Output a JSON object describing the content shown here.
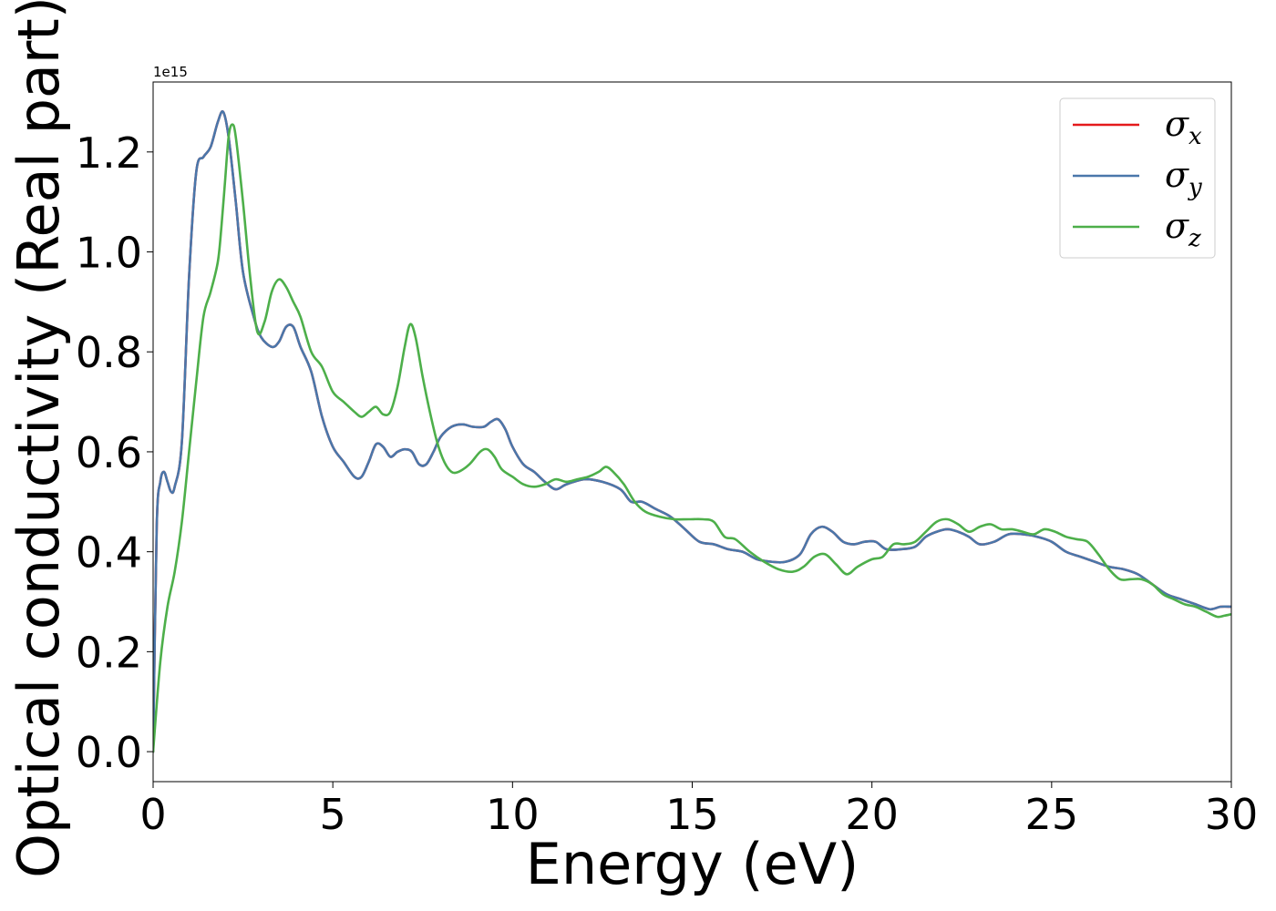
{
  "chart_data": {
    "type": "line",
    "title": "",
    "xlabel": "Energy (eV)",
    "ylabel": "Optical conductivity (Real part)",
    "y_offset_label": "1e15",
    "xlim": [
      0,
      30
    ],
    "ylim": [
      -0.06,
      1.34
    ],
    "xticks": [
      0,
      5,
      10,
      15,
      20,
      25,
      30
    ],
    "xtick_labels": [
      "0",
      "5",
      "10",
      "15",
      "20",
      "25",
      "30"
    ],
    "yticks": [
      0.0,
      0.2,
      0.4,
      0.6,
      0.8,
      1.0,
      1.2
    ],
    "ytick_labels": [
      "0.0",
      "0.2",
      "0.4",
      "0.6",
      "0.8",
      "1.0",
      "1.2"
    ],
    "grid": false,
    "legend_position": "top-right",
    "series": [
      {
        "name": "σx",
        "symbol": "σ",
        "subscript": "x",
        "color": "#e41a1c",
        "x": [
          0,
          0.1,
          0.2,
          0.3,
          0.4,
          0.5,
          0.6,
          0.8,
          1.0,
          1.2,
          1.4,
          1.6,
          1.8,
          1.95,
          2.1,
          2.3,
          2.5,
          2.8,
          3.0,
          3.3,
          3.5,
          3.7,
          3.9,
          4.1,
          4.4,
          4.7,
          5.0,
          5.3,
          5.6,
          5.8,
          6.0,
          6.2,
          6.4,
          6.6,
          6.8,
          7.0,
          7.2,
          7.4,
          7.6,
          7.8,
          8.0,
          8.3,
          8.6,
          8.9,
          9.2,
          9.4,
          9.6,
          9.8,
          10.0,
          10.3,
          10.6,
          10.9,
          11.2,
          11.5,
          12.0,
          12.5,
          13.0,
          13.3,
          13.6,
          14.0,
          14.4,
          14.8,
          15.2,
          15.6,
          16.0,
          16.4,
          16.8,
          17.2,
          17.6,
          18.0,
          18.3,
          18.6,
          18.9,
          19.2,
          19.5,
          19.8,
          20.1,
          20.4,
          20.8,
          21.2,
          21.5,
          21.8,
          22.1,
          22.4,
          22.7,
          23.0,
          23.4,
          23.8,
          24.2,
          24.6,
          25.0,
          25.4,
          25.8,
          26.2,
          26.6,
          27.0,
          27.4,
          27.8,
          28.2,
          28.6,
          29.0,
          29.4,
          29.7,
          30.0
        ],
        "y": [
          0.0,
          0.45,
          0.54,
          0.56,
          0.54,
          0.52,
          0.53,
          0.62,
          0.95,
          1.16,
          1.19,
          1.21,
          1.26,
          1.28,
          1.23,
          1.1,
          0.96,
          0.87,
          0.83,
          0.81,
          0.82,
          0.85,
          0.85,
          0.81,
          0.76,
          0.67,
          0.61,
          0.58,
          0.55,
          0.55,
          0.58,
          0.615,
          0.61,
          0.59,
          0.6,
          0.605,
          0.6,
          0.575,
          0.575,
          0.6,
          0.63,
          0.65,
          0.655,
          0.65,
          0.65,
          0.66,
          0.665,
          0.645,
          0.61,
          0.575,
          0.56,
          0.54,
          0.525,
          0.535,
          0.545,
          0.54,
          0.525,
          0.5,
          0.5,
          0.485,
          0.47,
          0.445,
          0.42,
          0.415,
          0.405,
          0.4,
          0.385,
          0.38,
          0.38,
          0.395,
          0.435,
          0.45,
          0.44,
          0.42,
          0.415,
          0.42,
          0.42,
          0.405,
          0.405,
          0.41,
          0.43,
          0.44,
          0.445,
          0.44,
          0.43,
          0.415,
          0.42,
          0.435,
          0.435,
          0.43,
          0.42,
          0.4,
          0.39,
          0.38,
          0.37,
          0.365,
          0.355,
          0.335,
          0.315,
          0.305,
          0.295,
          0.285,
          0.29,
          0.29
        ]
      },
      {
        "name": "σy",
        "symbol": "σ",
        "subscript": "y",
        "color": "#4a77aa",
        "x": [
          0,
          0.1,
          0.2,
          0.3,
          0.4,
          0.5,
          0.6,
          0.8,
          1.0,
          1.2,
          1.4,
          1.6,
          1.8,
          1.95,
          2.1,
          2.3,
          2.5,
          2.8,
          3.0,
          3.3,
          3.5,
          3.7,
          3.9,
          4.1,
          4.4,
          4.7,
          5.0,
          5.3,
          5.6,
          5.8,
          6.0,
          6.2,
          6.4,
          6.6,
          6.8,
          7.0,
          7.2,
          7.4,
          7.6,
          7.8,
          8.0,
          8.3,
          8.6,
          8.9,
          9.2,
          9.4,
          9.6,
          9.8,
          10.0,
          10.3,
          10.6,
          10.9,
          11.2,
          11.5,
          12.0,
          12.5,
          13.0,
          13.3,
          13.6,
          14.0,
          14.4,
          14.8,
          15.2,
          15.6,
          16.0,
          16.4,
          16.8,
          17.2,
          17.6,
          18.0,
          18.3,
          18.6,
          18.9,
          19.2,
          19.5,
          19.8,
          20.1,
          20.4,
          20.8,
          21.2,
          21.5,
          21.8,
          22.1,
          22.4,
          22.7,
          23.0,
          23.4,
          23.8,
          24.2,
          24.6,
          25.0,
          25.4,
          25.8,
          26.2,
          26.6,
          27.0,
          27.4,
          27.8,
          28.2,
          28.6,
          29.0,
          29.4,
          29.7,
          30.0
        ],
        "y": [
          0.0,
          0.45,
          0.54,
          0.56,
          0.54,
          0.52,
          0.53,
          0.62,
          0.95,
          1.16,
          1.19,
          1.21,
          1.26,
          1.28,
          1.23,
          1.1,
          0.96,
          0.87,
          0.83,
          0.81,
          0.82,
          0.85,
          0.85,
          0.81,
          0.76,
          0.67,
          0.61,
          0.58,
          0.55,
          0.55,
          0.58,
          0.615,
          0.61,
          0.59,
          0.6,
          0.605,
          0.6,
          0.575,
          0.575,
          0.6,
          0.63,
          0.65,
          0.655,
          0.65,
          0.65,
          0.66,
          0.665,
          0.645,
          0.61,
          0.575,
          0.56,
          0.54,
          0.525,
          0.535,
          0.545,
          0.54,
          0.525,
          0.5,
          0.5,
          0.485,
          0.47,
          0.445,
          0.42,
          0.415,
          0.405,
          0.4,
          0.385,
          0.38,
          0.38,
          0.395,
          0.435,
          0.45,
          0.44,
          0.42,
          0.415,
          0.42,
          0.42,
          0.405,
          0.405,
          0.41,
          0.43,
          0.44,
          0.445,
          0.44,
          0.43,
          0.415,
          0.42,
          0.435,
          0.435,
          0.43,
          0.42,
          0.4,
          0.39,
          0.38,
          0.37,
          0.365,
          0.355,
          0.335,
          0.315,
          0.305,
          0.295,
          0.285,
          0.29,
          0.29
        ]
      },
      {
        "name": "σz",
        "symbol": "σ",
        "subscript": "z",
        "color": "#4daf4a",
        "x": [
          0,
          0.2,
          0.4,
          0.6,
          0.8,
          1.0,
          1.2,
          1.4,
          1.6,
          1.8,
          1.9,
          2.0,
          2.1,
          2.2,
          2.3,
          2.5,
          2.7,
          2.9,
          3.1,
          3.3,
          3.5,
          3.7,
          3.9,
          4.1,
          4.4,
          4.7,
          5.0,
          5.3,
          5.6,
          5.8,
          6.0,
          6.2,
          6.4,
          6.6,
          6.8,
          7.0,
          7.15,
          7.3,
          7.5,
          7.7,
          7.9,
          8.1,
          8.3,
          8.5,
          8.8,
          9.1,
          9.3,
          9.5,
          9.7,
          10.0,
          10.3,
          10.6,
          10.9,
          11.2,
          11.5,
          11.8,
          12.1,
          12.4,
          12.6,
          12.8,
          13.1,
          13.4,
          13.7,
          14.1,
          14.5,
          14.9,
          15.3,
          15.6,
          15.9,
          16.2,
          16.6,
          17.0,
          17.4,
          17.8,
          18.1,
          18.4,
          18.7,
          19.0,
          19.3,
          19.6,
          20.0,
          20.3,
          20.6,
          20.9,
          21.2,
          21.5,
          21.8,
          22.1,
          22.4,
          22.7,
          23.0,
          23.3,
          23.6,
          23.9,
          24.2,
          24.5,
          24.8,
          25.1,
          25.4,
          25.7,
          26.0,
          26.3,
          26.6,
          26.9,
          27.2,
          27.5,
          27.8,
          28.1,
          28.4,
          28.7,
          29.0,
          29.3,
          29.6,
          29.8,
          30.0
        ],
        "y": [
          0.0,
          0.18,
          0.29,
          0.36,
          0.46,
          0.6,
          0.74,
          0.87,
          0.92,
          0.98,
          1.05,
          1.14,
          1.23,
          1.255,
          1.23,
          1.1,
          0.95,
          0.84,
          0.86,
          0.92,
          0.945,
          0.93,
          0.9,
          0.87,
          0.8,
          0.77,
          0.72,
          0.7,
          0.68,
          0.67,
          0.68,
          0.69,
          0.675,
          0.68,
          0.73,
          0.81,
          0.855,
          0.83,
          0.75,
          0.68,
          0.62,
          0.58,
          0.56,
          0.56,
          0.575,
          0.6,
          0.605,
          0.59,
          0.565,
          0.55,
          0.535,
          0.53,
          0.535,
          0.545,
          0.54,
          0.545,
          0.55,
          0.56,
          0.57,
          0.56,
          0.535,
          0.5,
          0.48,
          0.47,
          0.465,
          0.465,
          0.465,
          0.46,
          0.43,
          0.425,
          0.4,
          0.38,
          0.365,
          0.36,
          0.37,
          0.39,
          0.395,
          0.375,
          0.355,
          0.37,
          0.385,
          0.39,
          0.415,
          0.415,
          0.42,
          0.44,
          0.46,
          0.465,
          0.455,
          0.44,
          0.45,
          0.455,
          0.445,
          0.445,
          0.44,
          0.435,
          0.445,
          0.44,
          0.43,
          0.425,
          0.42,
          0.395,
          0.365,
          0.345,
          0.345,
          0.345,
          0.335,
          0.315,
          0.305,
          0.295,
          0.29,
          0.28,
          0.27,
          0.272,
          0.275
        ]
      }
    ]
  }
}
